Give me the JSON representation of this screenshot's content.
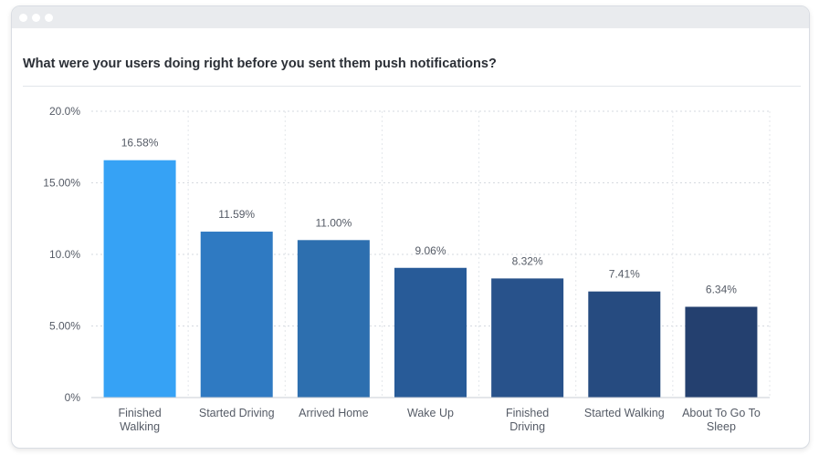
{
  "chart_data": {
    "type": "bar",
    "title": "What were your users doing right before you sent them push notifications?",
    "categories": [
      [
        "Finished",
        "Walking"
      ],
      [
        "Started Driving"
      ],
      [
        "Arrived Home"
      ],
      [
        "Wake Up"
      ],
      [
        "Finished",
        "Driving"
      ],
      [
        "Started Walking"
      ],
      [
        "About To Go To",
        "Sleep"
      ]
    ],
    "values": [
      16.58,
      11.59,
      11.0,
      9.06,
      8.32,
      7.41,
      6.34
    ],
    "value_labels": [
      "16.58%",
      "11.59%",
      "11.00%",
      "9.06%",
      "8.32%",
      "7.41%",
      "6.34%"
    ],
    "bar_colors": [
      "#36a2f5",
      "#2f7ac2",
      "#2d6faf",
      "#285b98",
      "#28528b",
      "#264b80",
      "#24406f"
    ],
    "yticks": [
      {
        "value": 0,
        "label": "0%"
      },
      {
        "value": 5,
        "label": "5.00%"
      },
      {
        "value": 10,
        "label": "10.0%"
      },
      {
        "value": 15,
        "label": "15.00%"
      },
      {
        "value": 20,
        "label": "20.0%"
      }
    ],
    "ylim": [
      0,
      20
    ],
    "xlabel": "",
    "ylabel": "",
    "grid": true,
    "grid_style": "dotted",
    "legend": "none"
  }
}
